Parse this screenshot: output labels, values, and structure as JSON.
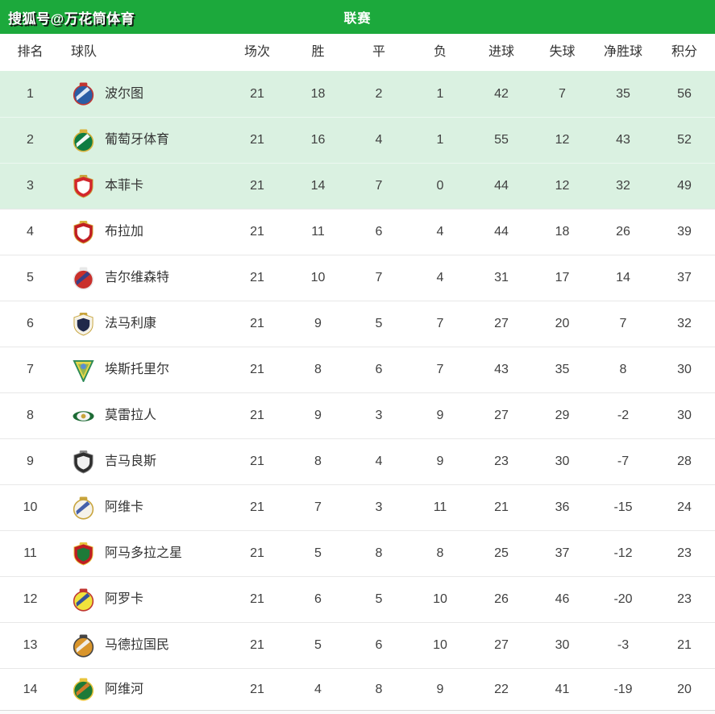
{
  "watermark": "搜狐号@万花筒体育",
  "header": {
    "title": "联赛"
  },
  "colors": {
    "header_green": "#1ca93c",
    "highlight_row": "#daf1e1",
    "row_border": "#e8e8e8",
    "text_dark": "#404040"
  },
  "chart_data": {
    "type": "table",
    "title": "联赛",
    "columns": [
      "排名",
      "球队",
      "场次",
      "胜",
      "平",
      "负",
      "进球",
      "失球",
      "净胜球",
      "积分"
    ],
    "highlight_top_n": 3,
    "rows": [
      {
        "rank": "1",
        "team": "波尔图",
        "played": "21",
        "win": "18",
        "draw": "2",
        "loss": "1",
        "goals_for": "42",
        "goals_against": "7",
        "goal_diff": "35",
        "points": "56",
        "logo": {
          "shape": "circle",
          "colors": [
            "#2a5da5",
            "#e8eef8",
            "#c23531"
          ]
        }
      },
      {
        "rank": "2",
        "team": "葡萄牙体育",
        "played": "21",
        "win": "16",
        "draw": "4",
        "loss": "1",
        "goals_for": "55",
        "goals_against": "12",
        "goal_diff": "43",
        "points": "52",
        "logo": {
          "shape": "circle",
          "colors": [
            "#0e7c42",
            "#ffffff",
            "#d8b23c"
          ]
        }
      },
      {
        "rank": "3",
        "team": "本菲卡",
        "played": "21",
        "win": "14",
        "draw": "7",
        "loss": "0",
        "goals_for": "44",
        "goals_against": "12",
        "goal_diff": "32",
        "points": "49",
        "logo": {
          "shape": "shield",
          "colors": [
            "#d3262c",
            "#ffffff",
            "#c8a43c"
          ]
        }
      },
      {
        "rank": "4",
        "team": "布拉加",
        "played": "21",
        "win": "11",
        "draw": "6",
        "loss": "4",
        "goals_for": "44",
        "goals_against": "18",
        "goal_diff": "26",
        "points": "39",
        "logo": {
          "shape": "shield",
          "colors": [
            "#c01d23",
            "#ffffff",
            "#d8b23c"
          ]
        }
      },
      {
        "rank": "5",
        "team": "吉尔维森特",
        "played": "21",
        "win": "10",
        "draw": "7",
        "loss": "4",
        "goals_for": "31",
        "goals_against": "17",
        "goal_diff": "14",
        "points": "37",
        "logo": {
          "shape": "circle",
          "colors": [
            "#c9302c",
            "#30418c",
            "#e8e8e8"
          ]
        }
      },
      {
        "rank": "6",
        "team": "法马利康",
        "played": "21",
        "win": "9",
        "draw": "5",
        "loss": "7",
        "goals_for": "27",
        "goals_against": "20",
        "goal_diff": "7",
        "points": "32",
        "logo": {
          "shape": "shield",
          "colors": [
            "#f5f2e8",
            "#20294a",
            "#c8a43c"
          ]
        }
      },
      {
        "rank": "7",
        "team": "埃斯托里尔",
        "played": "21",
        "win": "8",
        "draw": "6",
        "loss": "7",
        "goals_for": "43",
        "goals_against": "35",
        "goal_diff": "8",
        "points": "30",
        "logo": {
          "shape": "pennant",
          "colors": [
            "#e8d84a",
            "#2e8b57",
            "#5a8fd0"
          ]
        }
      },
      {
        "rank": "8",
        "team": "莫雷拉人",
        "played": "21",
        "win": "9",
        "draw": "3",
        "loss": "9",
        "goals_for": "27",
        "goals_against": "29",
        "goal_diff": "-2",
        "points": "30",
        "logo": {
          "shape": "wing",
          "colors": [
            "#1d6b35",
            "#f5f5f5",
            "#c8a43c"
          ]
        }
      },
      {
        "rank": "9",
        "team": "吉马良斯",
        "played": "21",
        "win": "8",
        "draw": "4",
        "loss": "9",
        "goals_for": "23",
        "goals_against": "30",
        "goal_diff": "-7",
        "points": "28",
        "logo": {
          "shape": "shield",
          "colors": [
            "#2e2e2e",
            "#f0f0f0",
            "#8a8a8a"
          ]
        }
      },
      {
        "rank": "10",
        "team": "阿维卡",
        "played": "21",
        "win": "7",
        "draw": "3",
        "loss": "11",
        "goals_for": "21",
        "goals_against": "36",
        "goal_diff": "-15",
        "points": "24",
        "logo": {
          "shape": "circle",
          "colors": [
            "#f5f2ea",
            "#3a57a8",
            "#c8a43c"
          ]
        }
      },
      {
        "rank": "11",
        "team": "阿马多拉之星",
        "played": "21",
        "win": "5",
        "draw": "8",
        "loss": "8",
        "goals_for": "25",
        "goals_against": "37",
        "goal_diff": "-12",
        "points": "23",
        "logo": {
          "shape": "shield",
          "colors": [
            "#c01d23",
            "#1d7a38",
            "#e8c43c"
          ]
        }
      },
      {
        "rank": "12",
        "team": "阿罗卡",
        "played": "21",
        "win": "6",
        "draw": "5",
        "loss": "10",
        "goals_for": "26",
        "goals_against": "46",
        "goal_diff": "-20",
        "points": "23",
        "logo": {
          "shape": "circle",
          "colors": [
            "#f0e23c",
            "#2a4a9e",
            "#c03531"
          ]
        }
      },
      {
        "rank": "13",
        "team": "马德拉国民",
        "played": "21",
        "win": "5",
        "draw": "6",
        "loss": "10",
        "goals_for": "27",
        "goals_against": "30",
        "goal_diff": "-3",
        "points": "21",
        "logo": {
          "shape": "circle",
          "colors": [
            "#d9952b",
            "#f2f2f2",
            "#444444"
          ]
        }
      },
      {
        "rank": "14",
        "team": "阿维河",
        "played": "21",
        "win": "4",
        "draw": "8",
        "loss": "9",
        "goals_for": "22",
        "goals_against": "41",
        "goal_diff": "-19",
        "points": "20",
        "logo": {
          "shape": "circle",
          "colors": [
            "#1d7a38",
            "#d97b28",
            "#e8c43c"
          ]
        }
      }
    ]
  }
}
